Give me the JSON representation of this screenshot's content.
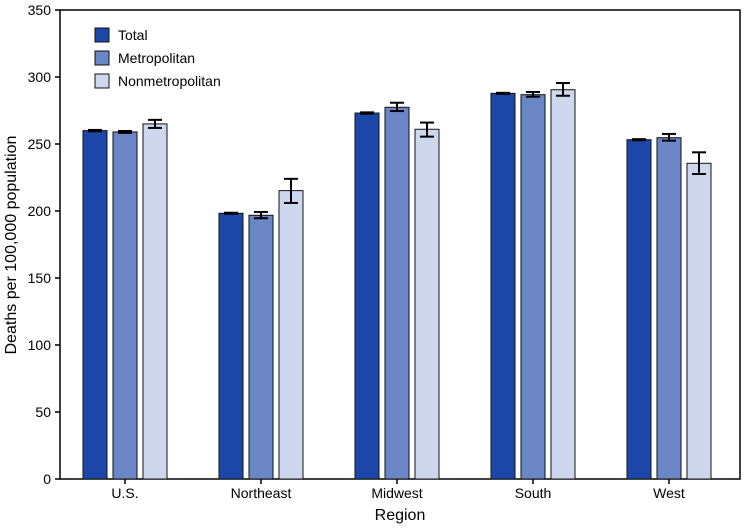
{
  "chart_data": {
    "type": "bar",
    "title": "",
    "xlabel": "Region",
    "ylabel": "Deaths per 100,000 population",
    "ylim": [
      0,
      350
    ],
    "yticks": [
      0,
      50,
      100,
      150,
      200,
      250,
      300,
      350
    ],
    "grid": false,
    "legend_position": "top-left",
    "categories": [
      "U.S.",
      "Northeast",
      "Midwest",
      "South",
      "West"
    ],
    "series": [
      {
        "name": "Total",
        "color": "#1c47a8",
        "values": [
          260,
          198.3,
          273.1,
          287.8,
          253.2
        ],
        "ci_low": [
          259.5,
          197.9,
          272.6,
          287.4,
          252.8
        ],
        "ci_high": [
          260.5,
          198.7,
          273.6,
          288.2,
          253.6
        ]
      },
      {
        "name": "Metropolitan",
        "color": "#6a86c6",
        "values": [
          259,
          196.8,
          277.4,
          286.8,
          254.7
        ],
        "ci_low": [
          258.3,
          194.6,
          274.6,
          285.3,
          252.5
        ],
        "ci_high": [
          259.7,
          199.3,
          280.8,
          288.8,
          257.5
        ]
      },
      {
        "name": "Nonmetropolitan",
        "color": "#cdd7ee",
        "values": [
          265,
          215.2,
          261,
          290.5,
          235.6
        ],
        "ci_low": [
          262,
          206,
          255.5,
          286,
          227.6
        ],
        "ci_high": [
          268,
          224,
          266,
          295.5,
          243.8
        ]
      }
    ]
  }
}
